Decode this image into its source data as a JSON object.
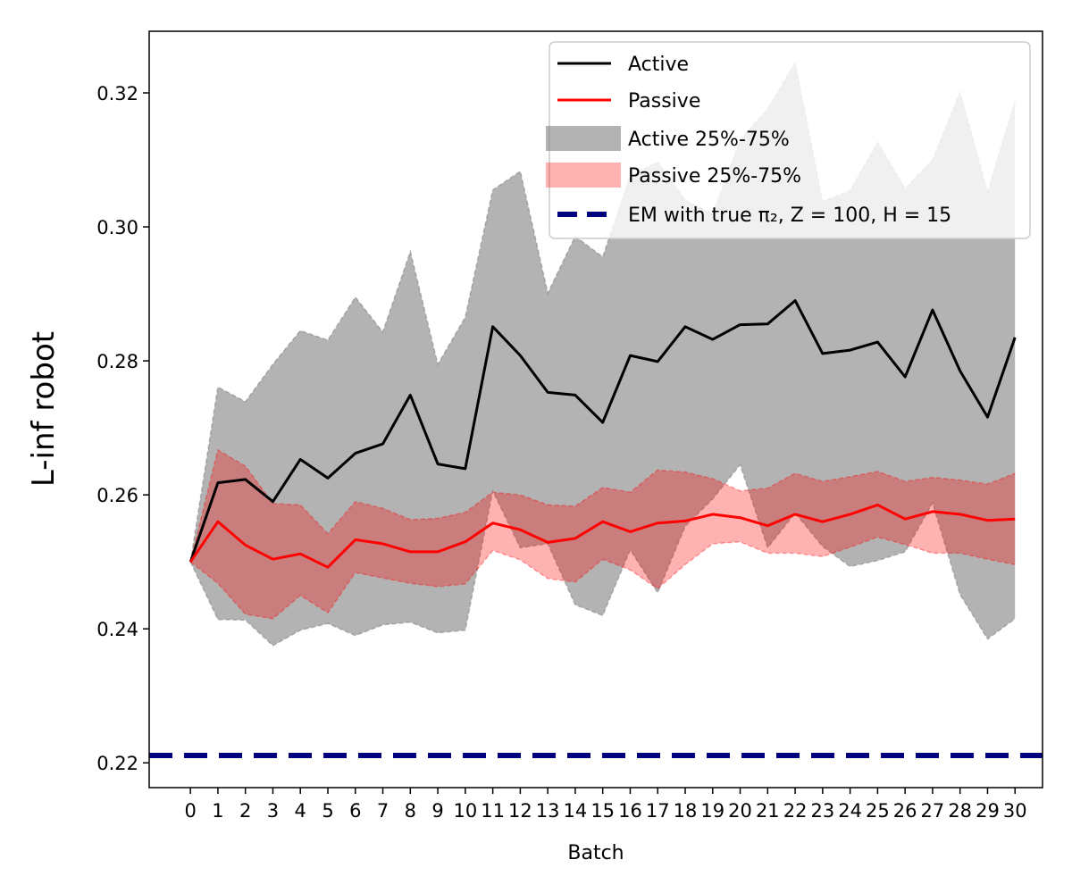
{
  "chart_data": {
    "type": "line",
    "title": "",
    "xlabel": "Batch",
    "ylabel": "L-inf robot",
    "xlim": [
      -1.5,
      31.0
    ],
    "ylim": [
      0.2163,
      0.3292
    ],
    "yticks": [
      "0.22",
      "0.24",
      "0.26",
      "0.28",
      "0.30",
      "0.32"
    ],
    "x": [
      0,
      1,
      2,
      3,
      4,
      5,
      6,
      7,
      8,
      9,
      10,
      11,
      12,
      13,
      14,
      15,
      16,
      17,
      18,
      19,
      20,
      21,
      22,
      23,
      24,
      25,
      26,
      27,
      28,
      29,
      30
    ],
    "series": [
      {
        "name": "Active",
        "color": "#000000",
        "values": [
          0.25,
          0.2618,
          0.2623,
          0.259,
          0.2653,
          0.2625,
          0.2662,
          0.2676,
          0.2749,
          0.2646,
          0.2639,
          0.2851,
          0.2808,
          0.2753,
          0.2749,
          0.2708,
          0.2808,
          0.2799,
          0.2851,
          0.2832,
          0.2854,
          0.2855,
          0.289,
          0.2811,
          0.2816,
          0.2828,
          0.2776,
          0.2876,
          0.2785,
          0.2716,
          0.2835
        ]
      },
      {
        "name": "Passive",
        "color": "#ff0000",
        "values": [
          0.25,
          0.256,
          0.2525,
          0.2504,
          0.2512,
          0.2492,
          0.2533,
          0.2527,
          0.2515,
          0.2515,
          0.253,
          0.2558,
          0.2548,
          0.2529,
          0.2535,
          0.256,
          0.2545,
          0.2558,
          0.2561,
          0.2571,
          0.2566,
          0.2554,
          0.2571,
          0.256,
          0.2571,
          0.2585,
          0.2564,
          0.2575,
          0.2571,
          0.2562,
          0.2564
        ]
      }
    ],
    "bands": [
      {
        "name": "Active 25%-75%",
        "color": "#808080",
        "lower": [
          0.25,
          0.2414,
          0.2413,
          0.2375,
          0.2398,
          0.2408,
          0.239,
          0.2406,
          0.241,
          0.2394,
          0.2398,
          0.2606,
          0.2521,
          0.2527,
          0.2436,
          0.242,
          0.2518,
          0.2454,
          0.2553,
          0.2594,
          0.2645,
          0.2521,
          0.2573,
          0.2523,
          0.2493,
          0.2502,
          0.2515,
          0.2588,
          0.2451,
          0.2385,
          0.2415
        ],
        "upper": [
          0.25,
          0.2761,
          0.2739,
          0.2795,
          0.2845,
          0.2831,
          0.2895,
          0.2843,
          0.2963,
          0.2795,
          0.2865,
          0.3055,
          0.3083,
          0.2901,
          0.2986,
          0.2955,
          0.3076,
          0.3097,
          0.304,
          0.3019,
          0.313,
          0.3176,
          0.3245,
          0.3038,
          0.3054,
          0.3126,
          0.3057,
          0.31,
          0.3201,
          0.3052,
          0.3188
        ]
      },
      {
        "name": "Passive 25%-75%",
        "color": "#ff0000",
        "lower": [
          0.25,
          0.2468,
          0.2422,
          0.2415,
          0.245,
          0.2424,
          0.2484,
          0.2476,
          0.2468,
          0.2463,
          0.2467,
          0.2517,
          0.2503,
          0.2475,
          0.247,
          0.2504,
          0.2488,
          0.246,
          0.2496,
          0.2527,
          0.253,
          0.2513,
          0.2513,
          0.2508,
          0.2522,
          0.2537,
          0.2526,
          0.2513,
          0.2513,
          0.2504,
          0.2496
        ],
        "upper": [
          0.25,
          0.2667,
          0.2643,
          0.2587,
          0.2585,
          0.2542,
          0.259,
          0.258,
          0.2563,
          0.2565,
          0.2574,
          0.2604,
          0.26,
          0.2585,
          0.2583,
          0.2611,
          0.2604,
          0.2637,
          0.2634,
          0.2624,
          0.2606,
          0.261,
          0.2632,
          0.262,
          0.2627,
          0.2635,
          0.262,
          0.2626,
          0.2622,
          0.2616,
          0.2632
        ]
      }
    ],
    "reference_line": {
      "name": "EM with true π₂, Z = 100, H = 15",
      "value": 0.2211,
      "color": "#00007f"
    },
    "legend_placement": "top-right",
    "grid": false
  }
}
